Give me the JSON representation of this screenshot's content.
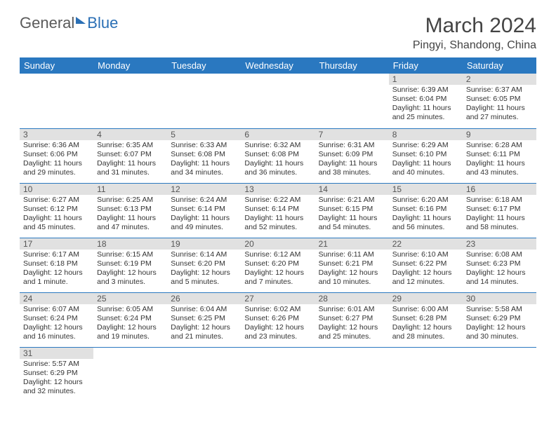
{
  "logo": {
    "part1": "General",
    "part2": "Blue"
  },
  "title": "March 2024",
  "location": "Pingyi, Shandong, China",
  "colors": {
    "header_bg": "#2a78c0",
    "header_text": "#ffffff",
    "daynum_bg": "#e1e1e1",
    "rule": "#2a78c0"
  },
  "weekdays": [
    "Sunday",
    "Monday",
    "Tuesday",
    "Wednesday",
    "Thursday",
    "Friday",
    "Saturday"
  ],
  "weeks": [
    [
      null,
      null,
      null,
      null,
      null,
      {
        "n": "1",
        "sr": "Sunrise: 6:39 AM",
        "ss": "Sunset: 6:04 PM",
        "dl": "Daylight: 11 hours and 25 minutes."
      },
      {
        "n": "2",
        "sr": "Sunrise: 6:37 AM",
        "ss": "Sunset: 6:05 PM",
        "dl": "Daylight: 11 hours and 27 minutes."
      }
    ],
    [
      {
        "n": "3",
        "sr": "Sunrise: 6:36 AM",
        "ss": "Sunset: 6:06 PM",
        "dl": "Daylight: 11 hours and 29 minutes."
      },
      {
        "n": "4",
        "sr": "Sunrise: 6:35 AM",
        "ss": "Sunset: 6:07 PM",
        "dl": "Daylight: 11 hours and 31 minutes."
      },
      {
        "n": "5",
        "sr": "Sunrise: 6:33 AM",
        "ss": "Sunset: 6:08 PM",
        "dl": "Daylight: 11 hours and 34 minutes."
      },
      {
        "n": "6",
        "sr": "Sunrise: 6:32 AM",
        "ss": "Sunset: 6:08 PM",
        "dl": "Daylight: 11 hours and 36 minutes."
      },
      {
        "n": "7",
        "sr": "Sunrise: 6:31 AM",
        "ss": "Sunset: 6:09 PM",
        "dl": "Daylight: 11 hours and 38 minutes."
      },
      {
        "n": "8",
        "sr": "Sunrise: 6:29 AM",
        "ss": "Sunset: 6:10 PM",
        "dl": "Daylight: 11 hours and 40 minutes."
      },
      {
        "n": "9",
        "sr": "Sunrise: 6:28 AM",
        "ss": "Sunset: 6:11 PM",
        "dl": "Daylight: 11 hours and 43 minutes."
      }
    ],
    [
      {
        "n": "10",
        "sr": "Sunrise: 6:27 AM",
        "ss": "Sunset: 6:12 PM",
        "dl": "Daylight: 11 hours and 45 minutes."
      },
      {
        "n": "11",
        "sr": "Sunrise: 6:25 AM",
        "ss": "Sunset: 6:13 PM",
        "dl": "Daylight: 11 hours and 47 minutes."
      },
      {
        "n": "12",
        "sr": "Sunrise: 6:24 AM",
        "ss": "Sunset: 6:14 PM",
        "dl": "Daylight: 11 hours and 49 minutes."
      },
      {
        "n": "13",
        "sr": "Sunrise: 6:22 AM",
        "ss": "Sunset: 6:14 PM",
        "dl": "Daylight: 11 hours and 52 minutes."
      },
      {
        "n": "14",
        "sr": "Sunrise: 6:21 AM",
        "ss": "Sunset: 6:15 PM",
        "dl": "Daylight: 11 hours and 54 minutes."
      },
      {
        "n": "15",
        "sr": "Sunrise: 6:20 AM",
        "ss": "Sunset: 6:16 PM",
        "dl": "Daylight: 11 hours and 56 minutes."
      },
      {
        "n": "16",
        "sr": "Sunrise: 6:18 AM",
        "ss": "Sunset: 6:17 PM",
        "dl": "Daylight: 11 hours and 58 minutes."
      }
    ],
    [
      {
        "n": "17",
        "sr": "Sunrise: 6:17 AM",
        "ss": "Sunset: 6:18 PM",
        "dl": "Daylight: 12 hours and 1 minute."
      },
      {
        "n": "18",
        "sr": "Sunrise: 6:15 AM",
        "ss": "Sunset: 6:19 PM",
        "dl": "Daylight: 12 hours and 3 minutes."
      },
      {
        "n": "19",
        "sr": "Sunrise: 6:14 AM",
        "ss": "Sunset: 6:20 PM",
        "dl": "Daylight: 12 hours and 5 minutes."
      },
      {
        "n": "20",
        "sr": "Sunrise: 6:12 AM",
        "ss": "Sunset: 6:20 PM",
        "dl": "Daylight: 12 hours and 7 minutes."
      },
      {
        "n": "21",
        "sr": "Sunrise: 6:11 AM",
        "ss": "Sunset: 6:21 PM",
        "dl": "Daylight: 12 hours and 10 minutes."
      },
      {
        "n": "22",
        "sr": "Sunrise: 6:10 AM",
        "ss": "Sunset: 6:22 PM",
        "dl": "Daylight: 12 hours and 12 minutes."
      },
      {
        "n": "23",
        "sr": "Sunrise: 6:08 AM",
        "ss": "Sunset: 6:23 PM",
        "dl": "Daylight: 12 hours and 14 minutes."
      }
    ],
    [
      {
        "n": "24",
        "sr": "Sunrise: 6:07 AM",
        "ss": "Sunset: 6:24 PM",
        "dl": "Daylight: 12 hours and 16 minutes."
      },
      {
        "n": "25",
        "sr": "Sunrise: 6:05 AM",
        "ss": "Sunset: 6:24 PM",
        "dl": "Daylight: 12 hours and 19 minutes."
      },
      {
        "n": "26",
        "sr": "Sunrise: 6:04 AM",
        "ss": "Sunset: 6:25 PM",
        "dl": "Daylight: 12 hours and 21 minutes."
      },
      {
        "n": "27",
        "sr": "Sunrise: 6:02 AM",
        "ss": "Sunset: 6:26 PM",
        "dl": "Daylight: 12 hours and 23 minutes."
      },
      {
        "n": "28",
        "sr": "Sunrise: 6:01 AM",
        "ss": "Sunset: 6:27 PM",
        "dl": "Daylight: 12 hours and 25 minutes."
      },
      {
        "n": "29",
        "sr": "Sunrise: 6:00 AM",
        "ss": "Sunset: 6:28 PM",
        "dl": "Daylight: 12 hours and 28 minutes."
      },
      {
        "n": "30",
        "sr": "Sunrise: 5:58 AM",
        "ss": "Sunset: 6:29 PM",
        "dl": "Daylight: 12 hours and 30 minutes."
      }
    ],
    [
      {
        "n": "31",
        "sr": "Sunrise: 5:57 AM",
        "ss": "Sunset: 6:29 PM",
        "dl": "Daylight: 12 hours and 32 minutes."
      },
      null,
      null,
      null,
      null,
      null,
      null
    ]
  ]
}
